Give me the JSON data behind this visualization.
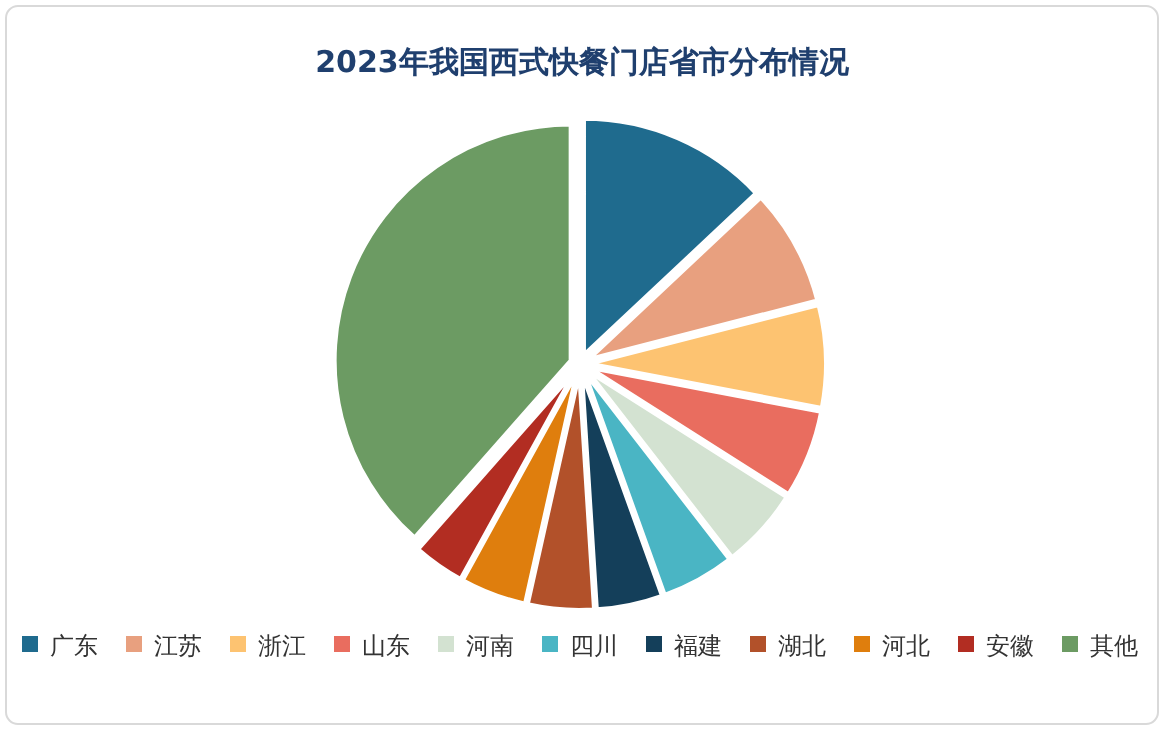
{
  "chart_data": {
    "type": "pie",
    "title": "2023年我国西式快餐门店省市分布情况",
    "categories": [
      "广东",
      "江苏",
      "浙江",
      "山东",
      "河南",
      "四川",
      "福建",
      "湖北",
      "河北",
      "安徽",
      "其他"
    ],
    "values": [
      13,
      8,
      7,
      6,
      5.5,
      5,
      4.5,
      4.5,
      4.5,
      3.5,
      38.5
    ],
    "colors": [
      "#1f6b8e",
      "#e8a07f",
      "#fdc371",
      "#e96d5f",
      "#d3e2d1",
      "#4ab5c4",
      "#143f5a",
      "#b2512a",
      "#df7e0d",
      "#b22d22",
      "#6c9b63"
    ],
    "legend": "bottom"
  }
}
